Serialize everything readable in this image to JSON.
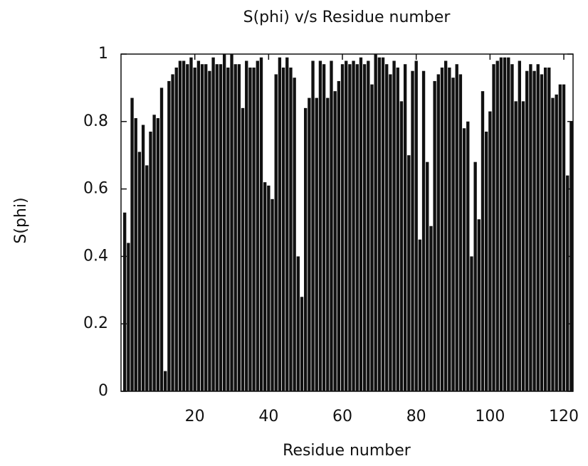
{
  "chart_data": {
    "type": "bar",
    "title": "S(phi) v/s Residue number",
    "x_label": "Residue number",
    "y_label": "S(phi)",
    "x": [
      1,
      2,
      3,
      4,
      5,
      6,
      7,
      8,
      9,
      10,
      11,
      12,
      13,
      14,
      15,
      16,
      17,
      18,
      19,
      20,
      21,
      22,
      23,
      24,
      25,
      26,
      27,
      28,
      29,
      30,
      31,
      32,
      33,
      34,
      35,
      36,
      37,
      38,
      39,
      40,
      41,
      42,
      43,
      44,
      45,
      46,
      47,
      48,
      49,
      50,
      51,
      52,
      53,
      54,
      55,
      56,
      57,
      58,
      59,
      60,
      61,
      62,
      63,
      64,
      65,
      66,
      67,
      68,
      69,
      70,
      71,
      72,
      73,
      74,
      75,
      76,
      77,
      78,
      79,
      80,
      81,
      82,
      83,
      84,
      85,
      86,
      87,
      88,
      89,
      90,
      91,
      92,
      93,
      94,
      95,
      96,
      97,
      98,
      99,
      100,
      101,
      102,
      103,
      104,
      105,
      106,
      107,
      108,
      109,
      110,
      111,
      112,
      113,
      114,
      115,
      116,
      117,
      118,
      119,
      120,
      121,
      122
    ],
    "values": [
      0.53,
      0.44,
      0.87,
      0.81,
      0.71,
      0.79,
      0.67,
      0.77,
      0.82,
      0.81,
      0.9,
      0.06,
      0.92,
      0.94,
      0.96,
      0.98,
      0.98,
      0.97,
      0.99,
      0.96,
      0.98,
      0.97,
      0.97,
      0.95,
      0.99,
      0.97,
      0.97,
      1.0,
      0.96,
      1.0,
      0.97,
      0.97,
      0.84,
      0.98,
      0.96,
      0.96,
      0.98,
      0.99,
      0.62,
      0.61,
      0.57,
      0.94,
      0.99,
      0.96,
      0.99,
      0.96,
      0.93,
      0.4,
      0.28,
      0.84,
      0.87,
      0.98,
      0.87,
      0.98,
      0.97,
      0.87,
      0.98,
      0.89,
      0.92,
      0.97,
      0.98,
      0.97,
      0.98,
      0.97,
      0.99,
      0.97,
      0.98,
      0.91,
      1.0,
      0.99,
      0.99,
      0.97,
      0.94,
      0.98,
      0.96,
      0.86,
      0.97,
      0.7,
      0.95,
      0.98,
      0.45,
      0.95,
      0.68,
      0.49,
      0.92,
      0.94,
      0.96,
      0.98,
      0.96,
      0.93,
      0.97,
      0.94,
      0.78,
      0.8,
      0.4,
      0.68,
      0.51,
      0.89,
      0.77,
      0.83,
      0.97,
      0.98,
      0.99,
      0.99,
      0.99,
      0.97,
      0.86,
      0.98,
      0.86,
      0.95,
      0.97,
      0.95,
      0.97,
      0.94,
      0.96,
      0.96,
      0.87,
      0.88,
      0.91,
      0.91,
      0.64,
      0.8
    ],
    "color": "#111111",
    "xlim": [
      0,
      122.5
    ],
    "xticks": [
      20,
      40,
      60,
      80,
      100,
      120
    ],
    "ylim": [
      0,
      1
    ],
    "yticks": [
      0,
      0.2,
      0.4,
      0.6,
      0.8,
      1
    ]
  }
}
